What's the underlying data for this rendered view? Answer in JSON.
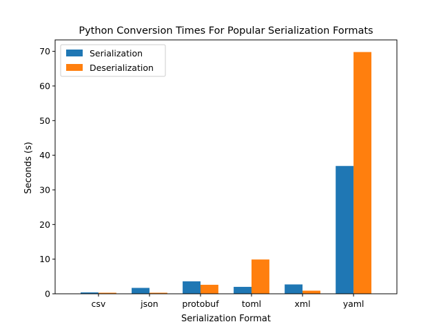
{
  "chart_data": {
    "type": "bar",
    "title": "Python Conversion Times For Popular Serialization Formats",
    "xlabel": "Serialization Format",
    "ylabel": "Seconds (s)",
    "categories": [
      "csv",
      "json",
      "protobuf",
      "toml",
      "xml",
      "yaml"
    ],
    "series": [
      {
        "name": "Serialization",
        "color": "#1f77b4",
        "values": [
          0.4,
          1.7,
          3.6,
          2.0,
          2.7,
          36.9
        ]
      },
      {
        "name": "Deserialization",
        "color": "#ff7f0e",
        "values": [
          0.3,
          0.3,
          2.6,
          9.9,
          0.9,
          69.8
        ]
      }
    ],
    "ylim": [
      0,
      73.3
    ],
    "yticks": [
      0,
      10,
      20,
      30,
      40,
      50,
      60,
      70
    ],
    "grid": false,
    "legend_position": "top-left"
  }
}
